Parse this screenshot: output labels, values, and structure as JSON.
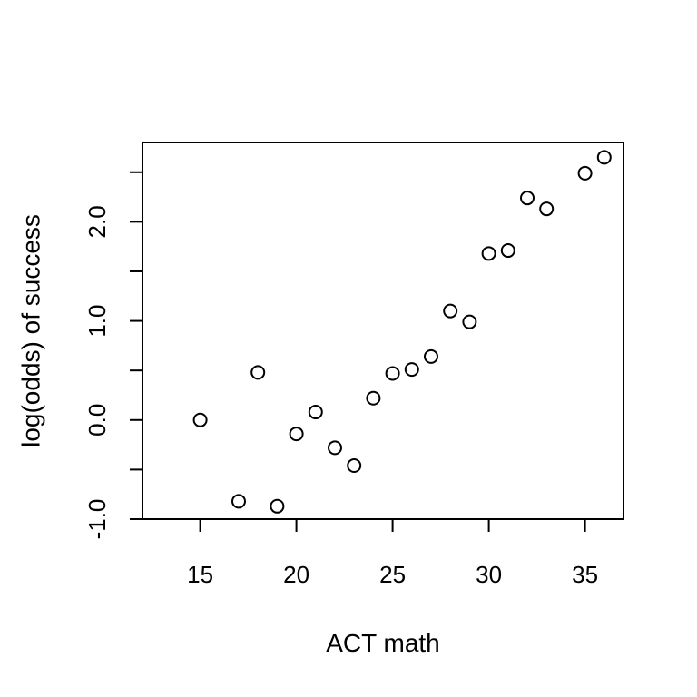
{
  "chart_data": {
    "type": "scatter",
    "title": "",
    "xlabel": "ACT math",
    "ylabel": "log(odds) of success",
    "xlim": [
      12.0,
      37.0
    ],
    "ylim": [
      -1.0,
      2.8
    ],
    "grid": false,
    "x_ticks": [
      15,
      20,
      25,
      30,
      35
    ],
    "x_tick_labels": [
      "15",
      "20",
      "25",
      "30",
      "35"
    ],
    "y_ticks": [
      -1.0,
      -0.5,
      0.0,
      0.5,
      1.0,
      1.5,
      2.0,
      2.5
    ],
    "y_tick_labels": [
      "-1.0",
      "",
      "0.0",
      "",
      "1.0",
      "",
      "2.0",
      ""
    ],
    "points": [
      {
        "x": 15,
        "y": 0.0
      },
      {
        "x": 17,
        "y": -0.82
      },
      {
        "x": 18,
        "y": 0.48
      },
      {
        "x": 19,
        "y": -0.87
      },
      {
        "x": 20,
        "y": -0.14
      },
      {
        "x": 21,
        "y": 0.08
      },
      {
        "x": 22,
        "y": -0.28
      },
      {
        "x": 23,
        "y": -0.46
      },
      {
        "x": 24,
        "y": 0.22
      },
      {
        "x": 25,
        "y": 0.47
      },
      {
        "x": 26,
        "y": 0.51
      },
      {
        "x": 27,
        "y": 0.64
      },
      {
        "x": 28,
        "y": 1.1
      },
      {
        "x": 29,
        "y": 0.99
      },
      {
        "x": 30,
        "y": 1.68
      },
      {
        "x": 31,
        "y": 1.71
      },
      {
        "x": 32,
        "y": 2.24
      },
      {
        "x": 33,
        "y": 2.13
      },
      {
        "x": 35,
        "y": 2.49
      },
      {
        "x": 36,
        "y": 2.65
      }
    ],
    "colors": {
      "axis": "#000000",
      "marker_stroke": "#000000",
      "marker_fill": "#ffffff"
    }
  }
}
